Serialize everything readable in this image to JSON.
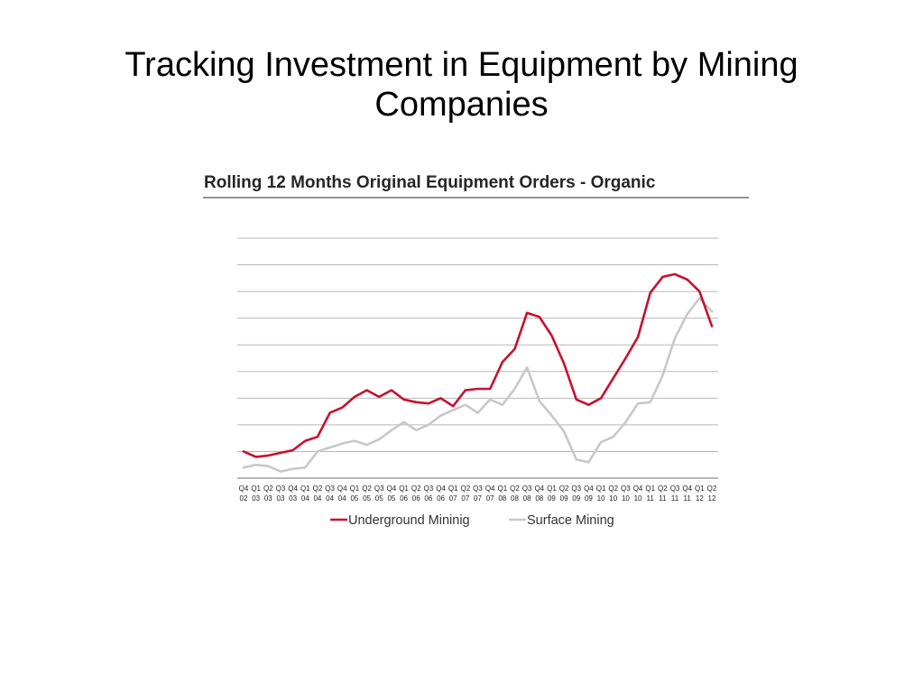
{
  "slide": {
    "title_line1": "Tracking Investment in Equipment by Mining",
    "title_line2": "Companies"
  },
  "chart_data": {
    "type": "line",
    "title": "Rolling 12 Months Original Equipment Orders - Organic",
    "xlabel": "",
    "ylabel": "",
    "grid": true,
    "legend_position": "bottom",
    "categories": [
      "Q4 02",
      "Q1 03",
      "Q2 03",
      "Q3 03",
      "Q4 03",
      "Q1 04",
      "Q2 04",
      "Q3 04",
      "Q4 04",
      "Q1 05",
      "Q2 05",
      "Q3 05",
      "Q4 05",
      "Q1 06",
      "Q2 06",
      "Q3 06",
      "Q4 06",
      "Q1 07",
      "Q2 07",
      "Q3 07",
      "Q4 07",
      "Q1 08",
      "Q2 08",
      "Q3 08",
      "Q4 08",
      "Q1 09",
      "Q2 09",
      "Q3 09",
      "Q4 09",
      "Q1 10",
      "Q2 10",
      "Q3 10",
      "Q4 10",
      "Q1 11",
      "Q2 11",
      "Q3 11",
      "Q4 11",
      "Q1 12",
      "Q2 12"
    ],
    "series": [
      {
        "name": "Underground Mininig",
        "color": "#c8102e",
        "values": [
          1.0,
          0.8,
          0.85,
          0.95,
          1.05,
          1.4,
          1.55,
          2.45,
          2.65,
          3.05,
          3.3,
          3.05,
          3.3,
          2.95,
          2.85,
          2.8,
          3.0,
          2.7,
          3.3,
          3.35,
          3.35,
          4.35,
          4.85,
          6.2,
          6.05,
          5.35,
          4.3,
          2.95,
          2.75,
          3.0,
          3.75,
          4.5,
          5.3,
          6.95,
          7.55,
          7.65,
          7.45,
          7.0,
          5.7
        ]
      },
      {
        "name": "Surface Mining",
        "color": "#c8c8c8",
        "values": [
          0.4,
          0.5,
          0.45,
          0.25,
          0.35,
          0.4,
          1.0,
          1.15,
          1.3,
          1.4,
          1.25,
          1.45,
          1.8,
          2.1,
          1.8,
          2.0,
          2.35,
          2.55,
          2.75,
          2.45,
          2.95,
          2.75,
          3.35,
          4.15,
          2.9,
          2.35,
          1.75,
          0.7,
          0.6,
          1.35,
          1.55,
          2.1,
          2.8,
          2.85,
          3.85,
          5.25,
          6.15,
          6.75,
          6.25
        ]
      }
    ],
    "ylim": [
      0,
      9
    ]
  }
}
